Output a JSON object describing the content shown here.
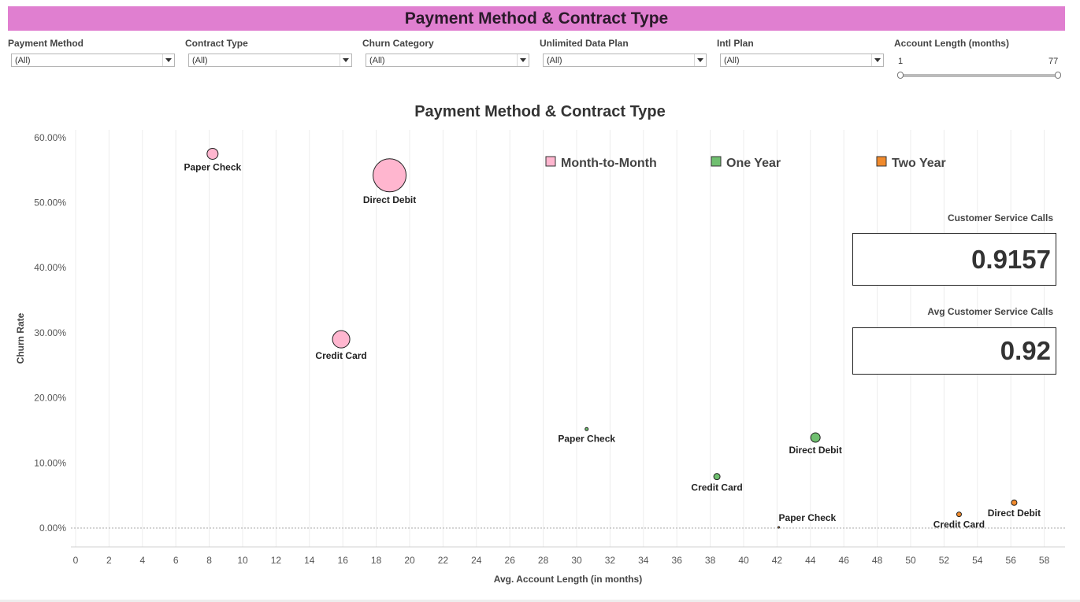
{
  "header": {
    "title": "Payment Method & Contract Type"
  },
  "filters": [
    {
      "label": "Payment Method",
      "value": "(All)"
    },
    {
      "label": "Contract Type",
      "value": "(All)"
    },
    {
      "label": "Churn Category",
      "value": "(All)"
    },
    {
      "label": "Unlimited Data Plan",
      "value": "(All)"
    },
    {
      "label": "Intl Plan",
      "value": "(All)"
    }
  ],
  "range_filter": {
    "label": "Account Length (months)",
    "min": "1",
    "max": "77"
  },
  "kpis": [
    {
      "label": "Customer Service Calls",
      "value": "0.9157"
    },
    {
      "label": "Avg Customer Service Calls",
      "value": "0.92"
    }
  ],
  "chart_data": {
    "type": "scatter",
    "title": "Payment Method & Contract Type",
    "xlabel": "Avg. Account Length (in months)",
    "ylabel": "Churn Rate",
    "xlim": [
      0,
      58
    ],
    "ylim": [
      0,
      60
    ],
    "xticks": [
      "0",
      "2",
      "4",
      "6",
      "8",
      "10",
      "12",
      "14",
      "16",
      "18",
      "20",
      "22",
      "24",
      "26",
      "28",
      "30",
      "32",
      "34",
      "36",
      "38",
      "40",
      "42",
      "44",
      "46",
      "48",
      "50",
      "52",
      "54",
      "56",
      "58"
    ],
    "yticks": [
      "0.00%",
      "10.00%",
      "20.00%",
      "30.00%",
      "40.00%",
      "50.00%",
      "60.00%"
    ],
    "ytick_values": [
      0,
      10,
      20,
      30,
      40,
      50,
      60
    ],
    "grid": "vertical",
    "legend_position": "top-right",
    "series": [
      {
        "name": "Month-to-Month",
        "color": "#ffb6cf",
        "points": [
          {
            "label": "Paper Check",
            "x": 8.2,
            "y": 57.5,
            "size": 7
          },
          {
            "label": "Direct Debit",
            "x": 18.8,
            "y": 54.2,
            "size": 21
          },
          {
            "label": "Credit Card",
            "x": 15.9,
            "y": 29.0,
            "size": 11
          }
        ]
      },
      {
        "name": "One Year",
        "color": "#6fbf6f",
        "points": [
          {
            "label": "Paper Check",
            "x": 30.6,
            "y": 15.2,
            "size": 2
          },
          {
            "label": "Credit Card",
            "x": 38.4,
            "y": 7.9,
            "size": 4
          },
          {
            "label": "Direct Debit",
            "x": 44.3,
            "y": 13.9,
            "size": 6
          }
        ]
      },
      {
        "name": "Two Year",
        "color": "#f08a2c",
        "points": [
          {
            "label": "Paper Check",
            "x": 42.1,
            "y": 0.1,
            "size": 1
          },
          {
            "label": "Credit Card",
            "x": 52.9,
            "y": 2.1,
            "size": 3
          },
          {
            "label": "Direct Debit",
            "x": 56.2,
            "y": 3.9,
            "size": 3.5
          }
        ]
      }
    ]
  }
}
